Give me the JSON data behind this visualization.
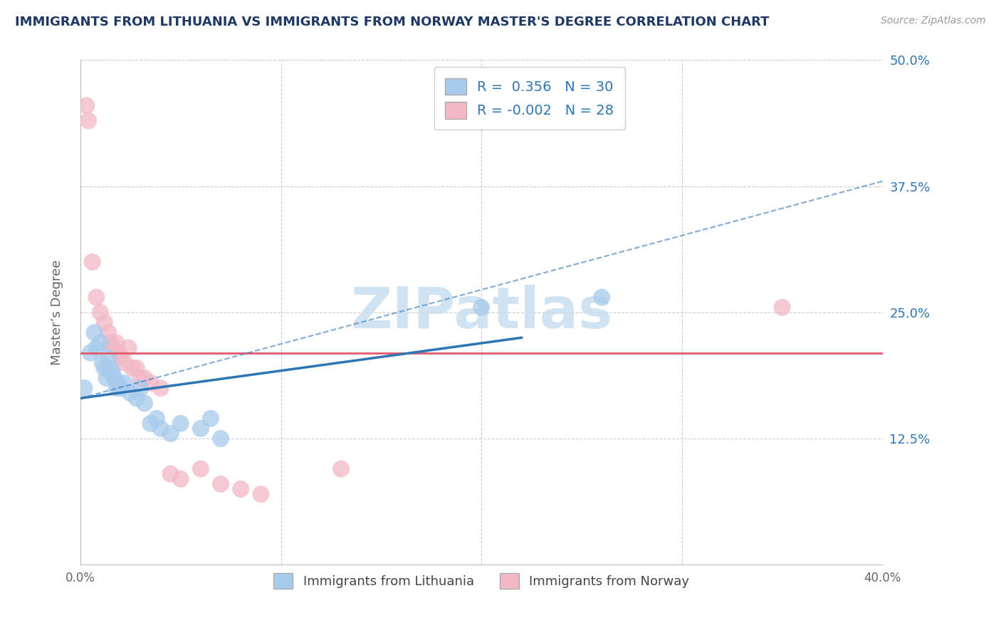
{
  "title": "IMMIGRANTS FROM LITHUANIA VS IMMIGRANTS FROM NORWAY MASTER'S DEGREE CORRELATION CHART",
  "source": "Source: ZipAtlas.com",
  "xlabel": "",
  "ylabel": "Master’s Degree",
  "xlim": [
    0.0,
    0.4
  ],
  "ylim": [
    0.0,
    0.5
  ],
  "xticks": [
    0.0,
    0.1,
    0.2,
    0.3,
    0.4
  ],
  "yticks": [
    0.0,
    0.125,
    0.25,
    0.375,
    0.5
  ],
  "ytick_labels": [
    "",
    "12.5%",
    "25.0%",
    "37.5%",
    "50.0%"
  ],
  "xtick_labels": [
    "0.0%",
    "",
    "",
    "",
    "40.0%"
  ],
  "legend_label1": "Immigrants from Lithuania",
  "legend_label2": "Immigrants from Norway",
  "blue_color": "#A8CAEB",
  "pink_color": "#F2B8C6",
  "blue_line_color": "#2E75B6",
  "pink_line_color": "#E05A6B",
  "grid_color": "#CCCCCC",
  "watermark_color": "#C8DFF0",
  "title_color": "#1F3864",
  "legend_text_color": "#2E75B6",
  "axis_label_color": "#666666",
  "right_ytick_color": "#2E75B6",
  "scatter_lithuania": [
    [
      0.002,
      0.175
    ],
    [
      0.005,
      0.21
    ],
    [
      0.007,
      0.23
    ],
    [
      0.008,
      0.215
    ],
    [
      0.01,
      0.22
    ],
    [
      0.011,
      0.2
    ],
    [
      0.012,
      0.195
    ],
    [
      0.013,
      0.185
    ],
    [
      0.014,
      0.205
    ],
    [
      0.015,
      0.195
    ],
    [
      0.016,
      0.19
    ],
    [
      0.017,
      0.185
    ],
    [
      0.018,
      0.175
    ],
    [
      0.019,
      0.18
    ],
    [
      0.02,
      0.175
    ],
    [
      0.022,
      0.18
    ],
    [
      0.025,
      0.17
    ],
    [
      0.028,
      0.165
    ],
    [
      0.03,
      0.175
    ],
    [
      0.032,
      0.16
    ],
    [
      0.035,
      0.14
    ],
    [
      0.038,
      0.145
    ],
    [
      0.04,
      0.135
    ],
    [
      0.045,
      0.13
    ],
    [
      0.05,
      0.14
    ],
    [
      0.06,
      0.135
    ],
    [
      0.065,
      0.145
    ],
    [
      0.07,
      0.125
    ],
    [
      0.2,
      0.255
    ],
    [
      0.26,
      0.265
    ]
  ],
  "scatter_norway": [
    [
      0.003,
      0.455
    ],
    [
      0.004,
      0.44
    ],
    [
      0.006,
      0.3
    ],
    [
      0.008,
      0.265
    ],
    [
      0.01,
      0.25
    ],
    [
      0.012,
      0.24
    ],
    [
      0.014,
      0.23
    ],
    [
      0.015,
      0.22
    ],
    [
      0.016,
      0.215
    ],
    [
      0.018,
      0.22
    ],
    [
      0.019,
      0.21
    ],
    [
      0.02,
      0.205
    ],
    [
      0.022,
      0.2
    ],
    [
      0.024,
      0.215
    ],
    [
      0.026,
      0.195
    ],
    [
      0.028,
      0.195
    ],
    [
      0.03,
      0.185
    ],
    [
      0.032,
      0.185
    ],
    [
      0.035,
      0.18
    ],
    [
      0.04,
      0.175
    ],
    [
      0.045,
      0.09
    ],
    [
      0.05,
      0.085
    ],
    [
      0.06,
      0.095
    ],
    [
      0.07,
      0.08
    ],
    [
      0.08,
      0.075
    ],
    [
      0.09,
      0.07
    ],
    [
      0.13,
      0.095
    ],
    [
      0.35,
      0.255
    ]
  ],
  "blue_line_solid": [
    [
      0.0,
      0.165
    ],
    [
      0.22,
      0.225
    ]
  ],
  "blue_line_dashed": [
    [
      0.0,
      0.165
    ],
    [
      0.4,
      0.38
    ]
  ],
  "pink_line": [
    [
      0.0,
      0.21
    ],
    [
      0.4,
      0.21
    ]
  ]
}
